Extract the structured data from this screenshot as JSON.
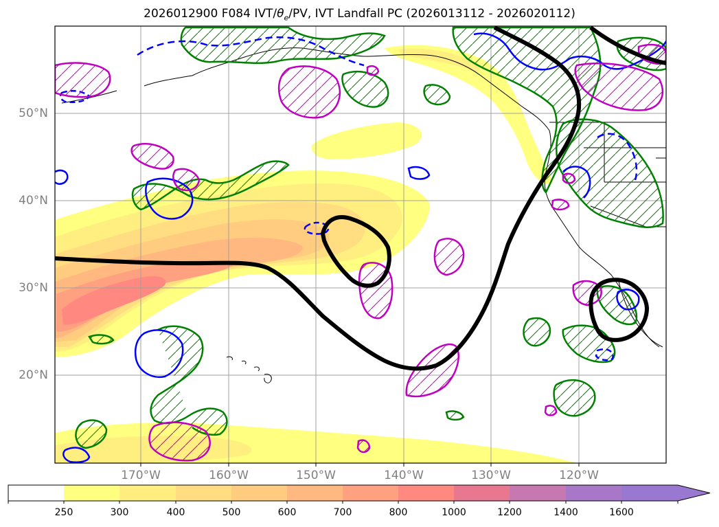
{
  "title": "2026012900 F084 IVT/θe/PV, IVT Landfall PC (2026013112 - 2026020112)",
  "title_parts": {
    "prefix": "2026012900 F084 IVT/",
    "theta": "θ",
    "sub": "e",
    "suffix": "/PV, IVT Landfall PC (2026013112 - 2026020112)"
  },
  "map": {
    "lat_labels": [
      "50°N",
      "40°N",
      "30°N",
      "20°N"
    ],
    "lon_labels": [
      "170°W",
      "160°W",
      "150°W",
      "140°W",
      "130°W",
      "120°W"
    ],
    "grid": true,
    "colors": {
      "land_border": "#000000",
      "contour_green": "#008000",
      "contour_blue": "#0000ff",
      "contour_magenta": "#c000c0",
      "landfall_line": "#000000",
      "gridline": "#a0a0a0",
      "frame": "#000000"
    }
  },
  "colorbar": {
    "ticks": [
      "250",
      "300",
      "400",
      "500",
      "600",
      "700",
      "800",
      "1000",
      "1200",
      "1400",
      "1600"
    ],
    "colors": [
      "#ffffff",
      "#ffff80",
      "#ffee80",
      "#ffdd80",
      "#ffcc80",
      "#ffb880",
      "#ffa080",
      "#ff8880",
      "#e87890",
      "#c878b0",
      "#a878c8",
      "#9878d0"
    ],
    "extend": "max"
  }
}
